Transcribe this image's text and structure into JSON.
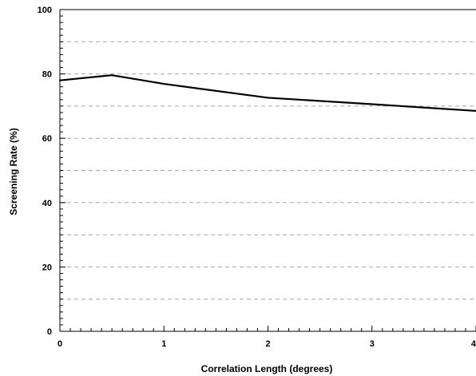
{
  "chart_data": {
    "type": "line",
    "title": "",
    "xlabel": "Correlation Length (degrees)",
    "ylabel": "Screening Rate (%)",
    "xlim": [
      0,
      4
    ],
    "ylim": [
      0,
      100
    ],
    "x_ticks": [
      0,
      1,
      2,
      3,
      4
    ],
    "x_tick_labels": [
      "0",
      "1",
      "2",
      "3",
      "4"
    ],
    "y_ticks": [
      0,
      20,
      40,
      60,
      80,
      100
    ],
    "y_tick_labels": [
      "0",
      "20",
      "40",
      "60",
      "80",
      "100"
    ],
    "y_gridlines": [
      10,
      20,
      30,
      40,
      50,
      60,
      70,
      80,
      90
    ],
    "grid": "dashed horizontal",
    "series": [
      {
        "x": [
          0,
          0.5,
          1,
          2,
          3,
          4
        ],
        "y": [
          78,
          79.6,
          76.9,
          72.6,
          70.6,
          68.5
        ],
        "color": "#000000"
      }
    ]
  }
}
